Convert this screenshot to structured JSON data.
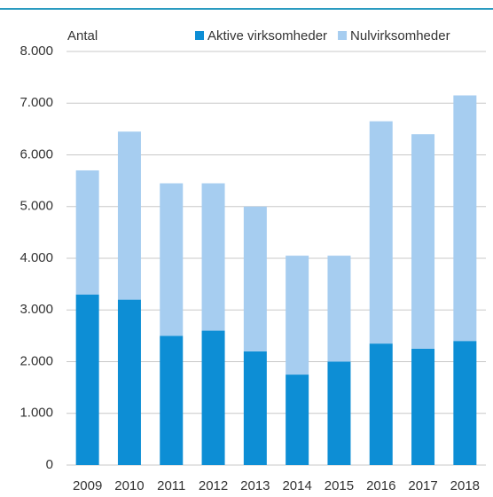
{
  "chart_data": {
    "type": "stacked_bar",
    "y_label": "Antal",
    "categories": [
      "2009",
      "2010",
      "2011",
      "2012",
      "2013",
      "2014",
      "2015",
      "2016",
      "2017",
      "2018"
    ],
    "series": [
      {
        "name": "Aktive virksomheder",
        "color": "#0d8ed5",
        "values": [
          3300,
          3200,
          2500,
          2600,
          2200,
          1750,
          2000,
          2350,
          2250,
          2400
        ]
      },
      {
        "name": "Nulvirksomheder",
        "color": "#a6cdf0",
        "values": [
          2400,
          3250,
          2950,
          2850,
          2800,
          2300,
          2050,
          4300,
          4150,
          4750
        ]
      }
    ],
    "ylim": [
      0,
      8000
    ],
    "yticks": [
      0,
      {
        "value": 1000,
        "label": "1.000"
      },
      {
        "value": 2000,
        "label": "2.000"
      },
      {
        "value": 3000,
        "label": "3.000"
      },
      {
        "value": 4000,
        "label": "4.000"
      },
      {
        "value": 5000,
        "label": "5.000"
      },
      {
        "value": 6000,
        "label": "6.000"
      },
      {
        "value": 7000,
        "label": "7.000"
      },
      {
        "value": 8000,
        "label": "8.000"
      }
    ],
    "grid": true,
    "legend": "top"
  }
}
